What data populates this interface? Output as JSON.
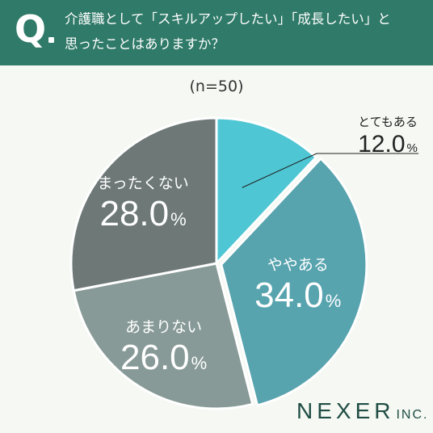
{
  "question": {
    "mark": "Q",
    "line1": "介護職として「スキルアップしたい」「成長したい」と",
    "line2": "思ったことはありますか？"
  },
  "sample_size": "(n=50)",
  "brand": {
    "main": "NEXER",
    "sub": "INC."
  },
  "colors": {
    "header": "#2f7a68",
    "background": "#f5f8f3"
  },
  "chart_data": {
    "type": "pie",
    "unit": "%",
    "slices": [
      {
        "label": "とてもある",
        "value": 12.0,
        "color": "#4ec6d4",
        "label_color": "#222222",
        "label_position": "outside-top-right"
      },
      {
        "label": "ややある",
        "value": 34.0,
        "color": "#57a3ae",
        "label_color": "#ffffff"
      },
      {
        "label": "あまりない",
        "value": 26.0,
        "color": "#879a97",
        "label_color": "#ffffff"
      },
      {
        "label": "まったくない",
        "value": 28.0,
        "color": "#6d7877",
        "label_color": "#ffffff"
      }
    ],
    "start": "12 o'clock",
    "direction": "clockwise",
    "exploded_slice": "ややある"
  }
}
